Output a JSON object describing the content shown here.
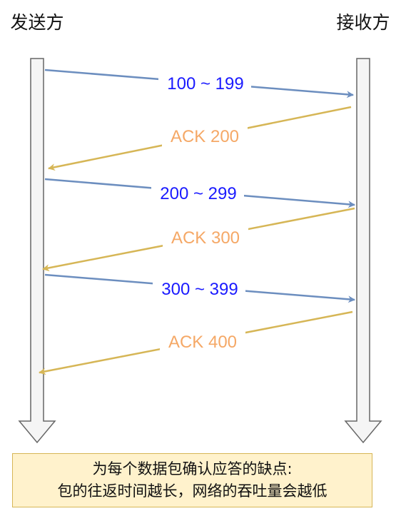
{
  "parties": {
    "sender": "发送方",
    "receiver": "接收方"
  },
  "messages": [
    {
      "kind": "segment",
      "label": "100 ~ 199",
      "direction": "sender-to-receiver"
    },
    {
      "kind": "ack",
      "label": "ACK 200",
      "direction": "receiver-to-sender"
    },
    {
      "kind": "segment",
      "label": "200 ~ 299",
      "direction": "sender-to-receiver"
    },
    {
      "kind": "ack",
      "label": "ACK 300",
      "direction": "receiver-to-sender"
    },
    {
      "kind": "segment",
      "label": "300 ~ 399",
      "direction": "sender-to-receiver"
    },
    {
      "kind": "ack",
      "label": "ACK 400",
      "direction": "receiver-to-sender"
    }
  ],
  "note": {
    "line1": "为每个数据包确认应答的缺点:",
    "line2": "包的往返时间越长，网络的吞吐量会越低"
  },
  "colors": {
    "segment_line": "#6c8ebf",
    "segment_text": "#1a1aff",
    "ack_line": "#d6b656",
    "ack_text": "#f5a866",
    "lifeline_fill": "#f5f5f5",
    "lifeline_stroke": "#666666",
    "note_fill": "#fff2cc",
    "note_border": "#d6b656"
  }
}
